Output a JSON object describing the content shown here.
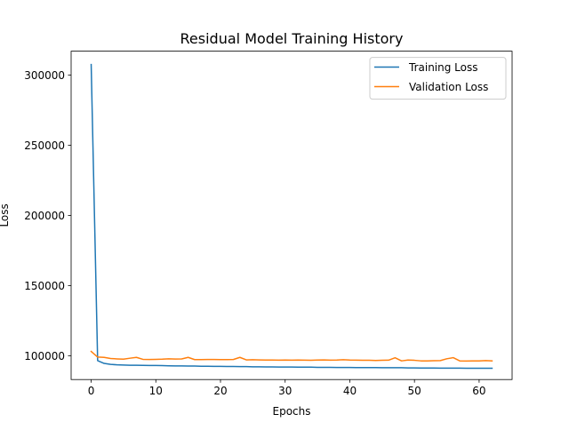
{
  "chart_data": {
    "type": "line",
    "title": "Residual Model Training History",
    "xlabel": "Epochs",
    "ylabel": "Loss",
    "xlim": [
      -3.1,
      65.1
    ],
    "ylim": [
      83000,
      317000
    ],
    "xticks": [
      0,
      10,
      20,
      30,
      40,
      50,
      60
    ],
    "yticks": [
      100000,
      150000,
      200000,
      250000,
      300000
    ],
    "xtick_labels": [
      "0",
      "10",
      "20",
      "30",
      "40",
      "50",
      "60"
    ],
    "ytick_labels": [
      "100000",
      "150000",
      "200000",
      "250000",
      "300000"
    ],
    "grid": false,
    "legend_position": "upper-right",
    "series": [
      {
        "name": "Training Loss",
        "color": "#1f77b4",
        "x": [
          0,
          1,
          2,
          3,
          4,
          5,
          6,
          7,
          8,
          9,
          10,
          11,
          12,
          13,
          14,
          15,
          16,
          17,
          18,
          19,
          20,
          21,
          22,
          23,
          24,
          25,
          26,
          27,
          28,
          29,
          30,
          31,
          32,
          33,
          34,
          35,
          36,
          37,
          38,
          39,
          40,
          41,
          42,
          43,
          44,
          45,
          46,
          47,
          48,
          49,
          50,
          51,
          52,
          53,
          54,
          55,
          56,
          57,
          58,
          59,
          60,
          61,
          62
        ],
        "values": [
          307500,
          96500,
          94500,
          93800,
          93500,
          93300,
          93200,
          93200,
          93100,
          93000,
          93000,
          92900,
          92800,
          92700,
          92700,
          92600,
          92600,
          92500,
          92500,
          92400,
          92400,
          92300,
          92300,
          92200,
          92200,
          92100,
          92100,
          92000,
          92000,
          91900,
          91900,
          91900,
          91800,
          91800,
          91800,
          91700,
          91700,
          91700,
          91600,
          91600,
          91600,
          91500,
          91500,
          91500,
          91500,
          91400,
          91400,
          91400,
          91400,
          91300,
          91300,
          91200,
          91200,
          91200,
          91100,
          91100,
          91100,
          91100,
          91000,
          91000,
          91000,
          91000,
          91000
        ]
      },
      {
        "name": "Validation Loss",
        "color": "#ff7f0e",
        "x": [
          0,
          1,
          2,
          3,
          4,
          5,
          6,
          7,
          8,
          9,
          10,
          11,
          12,
          13,
          14,
          15,
          16,
          17,
          18,
          19,
          20,
          21,
          22,
          23,
          24,
          25,
          26,
          27,
          28,
          29,
          30,
          31,
          32,
          33,
          34,
          35,
          36,
          37,
          38,
          39,
          40,
          41,
          42,
          43,
          44,
          45,
          46,
          47,
          48,
          49,
          50,
          51,
          52,
          53,
          54,
          55,
          56,
          57,
          58,
          59,
          60,
          61,
          62
        ],
        "values": [
          103000,
          99000,
          98800,
          98000,
          97700,
          97500,
          98200,
          98800,
          97400,
          97300,
          97400,
          97500,
          97800,
          97600,
          97700,
          98800,
          97200,
          97200,
          97300,
          97300,
          97200,
          97200,
          97300,
          98800,
          97000,
          97100,
          97000,
          96900,
          96900,
          96800,
          96900,
          96800,
          96900,
          96800,
          96700,
          96900,
          97000,
          96800,
          96900,
          97100,
          96900,
          96800,
          96700,
          96700,
          96600,
          96700,
          96800,
          98500,
          96300,
          96900,
          96700,
          96300,
          96300,
          96400,
          96500,
          97800,
          98600,
          96300,
          96200,
          96300,
          96300,
          96500,
          96300
        ]
      }
    ]
  }
}
